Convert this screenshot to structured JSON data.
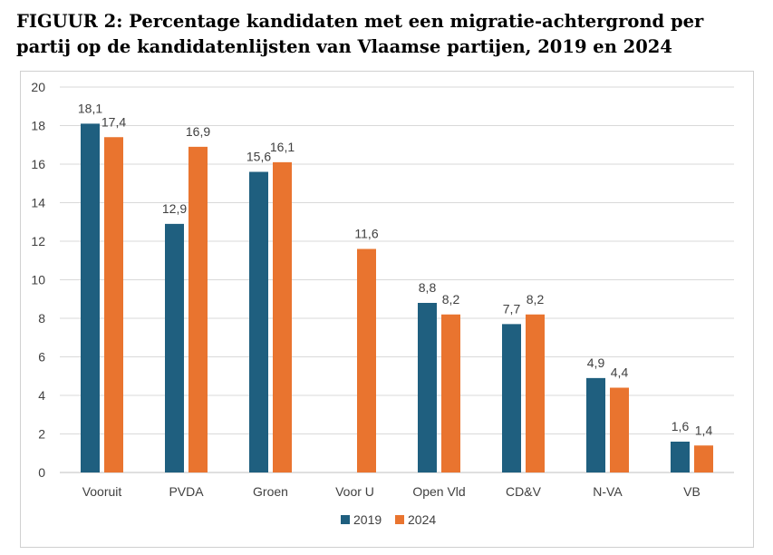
{
  "title": "FIGUUR 2: Percentage kandidaten met een migratie-achtergrond per partij op de kandidatenlijsten van Vlaamse partijen, 2019 en 2024",
  "chart_data": {
    "type": "bar",
    "categories": [
      "Vooruit",
      "PVDA",
      "Groen",
      "Voor U",
      "Open Vld",
      "CD&V",
      "N-VA",
      "VB"
    ],
    "series": [
      {
        "name": "2019",
        "color": "#1f5f7f",
        "values": [
          18.1,
          12.9,
          15.6,
          null,
          8.8,
          7.7,
          4.9,
          1.6
        ],
        "labels": [
          "18,1",
          "12,9",
          "15,6",
          "",
          "8,8",
          "7,7",
          "4,9",
          "1,6"
        ]
      },
      {
        "name": "2024",
        "color": "#e9742f",
        "values": [
          17.4,
          16.9,
          16.1,
          11.6,
          8.2,
          8.2,
          4.4,
          1.4
        ],
        "labels": [
          "17,4",
          "16,9",
          "16,1",
          "11,6",
          "8,2",
          "8,2",
          "4,4",
          "1,4"
        ]
      }
    ],
    "ylim": [
      0,
      20
    ],
    "yticks": [
      0,
      2,
      4,
      6,
      8,
      10,
      12,
      14,
      16,
      18,
      20
    ],
    "xlabel": "",
    "ylabel": "",
    "grid": true,
    "legend_position": "bottom-center"
  }
}
